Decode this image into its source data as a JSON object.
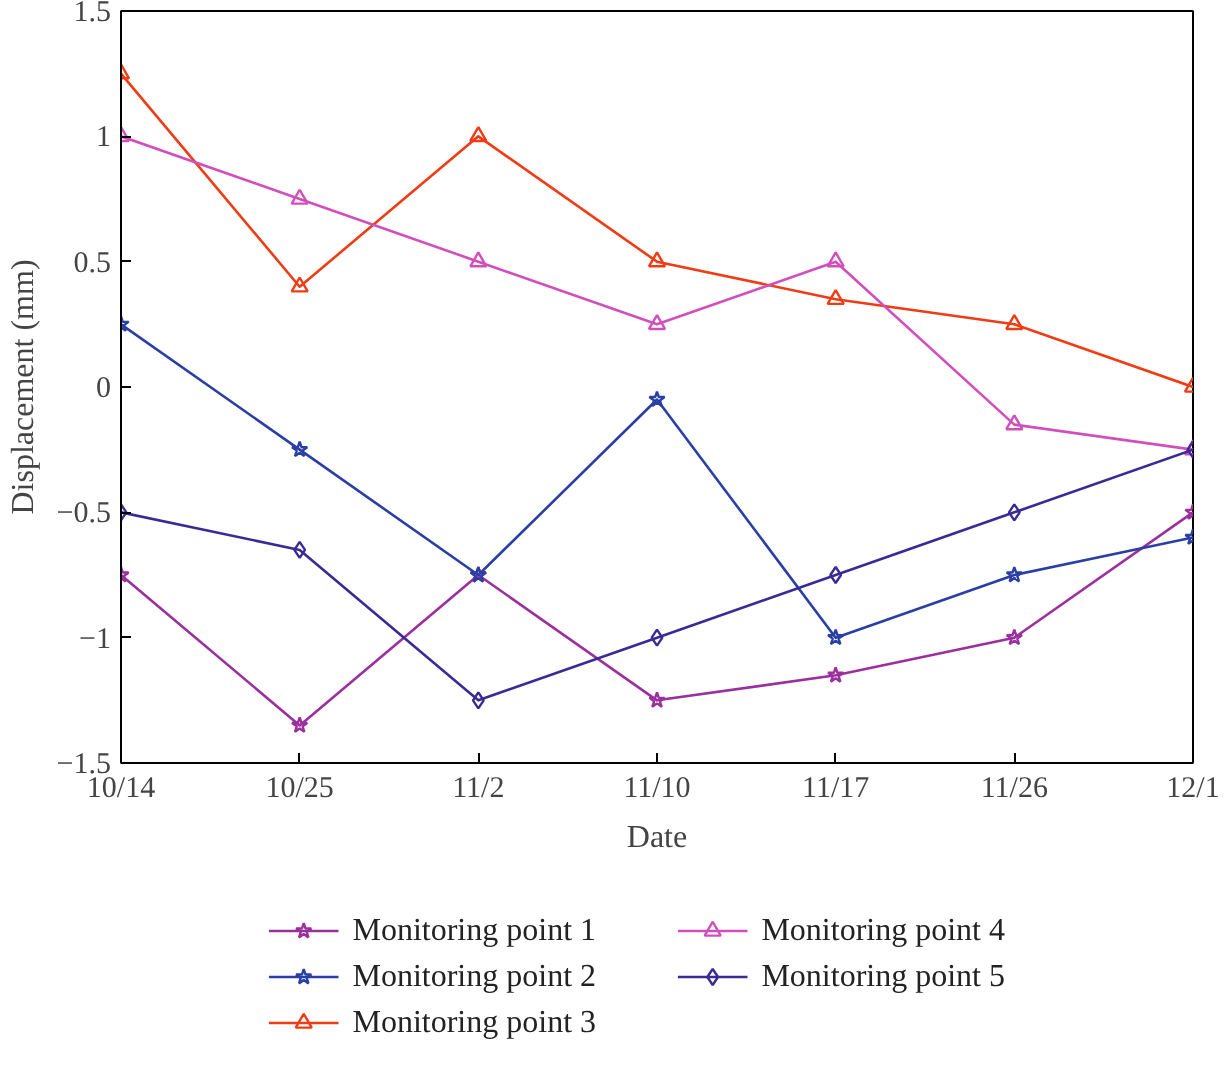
{
  "chart_data": {
    "type": "line",
    "xlabel": "Date",
    "ylabel": "Displacement (mm)",
    "categories": [
      "10/14",
      "10/25",
      "11/2",
      "11/10",
      "11/17",
      "11/26",
      "12/1"
    ],
    "series": [
      {
        "name": "Monitoring point 1",
        "color": "#9b2f9e",
        "marker": "star",
        "values": [
          -0.75,
          -1.35,
          -0.75,
          -1.25,
          -1.15,
          -1.0,
          -0.5
        ]
      },
      {
        "name": "Monitoring point 2",
        "color": "#2a3fa6",
        "marker": "star",
        "values": [
          0.25,
          -0.25,
          -0.75,
          -0.05,
          -1.0,
          -0.75,
          -0.6
        ]
      },
      {
        "name": "Monitoring point 3",
        "color": "#f03c14",
        "marker": "triangle",
        "values": [
          1.25,
          0.4,
          1.0,
          0.5,
          0.35,
          0.25,
          0.0
        ]
      },
      {
        "name": "Monitoring point 4",
        "color": "#d14fbd",
        "marker": "triangle",
        "values": [
          1.0,
          0.75,
          0.5,
          0.25,
          0.5,
          -0.15,
          -0.25
        ]
      },
      {
        "name": "Monitoring point 5",
        "color": "#3a2a96",
        "marker": "diamond",
        "values": [
          -0.5,
          -0.65,
          -1.25,
          -1.0,
          -0.75,
          -0.5,
          -0.25
        ]
      }
    ],
    "ylim": [
      -1.5,
      1.5
    ],
    "yticks": [
      {
        "value": -1.5,
        "label": "−1.5"
      },
      {
        "value": -1,
        "label": "−1"
      },
      {
        "value": -0.5,
        "label": "−0.5"
      },
      0,
      0.5,
      1,
      1.5
    ],
    "grid": false,
    "legend": "bottom",
    "line_style": "solid"
  }
}
